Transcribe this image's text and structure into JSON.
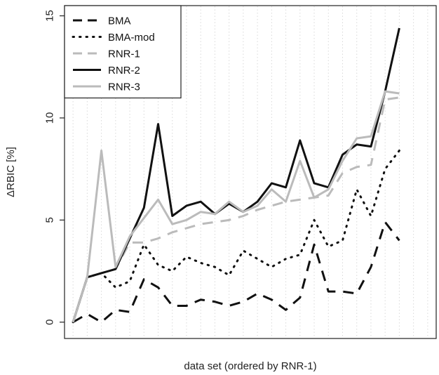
{
  "chart_data": {
    "type": "line",
    "xlabel": "data set (ordered by RNR-1)",
    "ylabel": "ΔRBIC [%]",
    "ylim": [
      -0.8,
      15.5
    ],
    "y_ticks": [
      0,
      5,
      10,
      15
    ],
    "x": [
      1,
      2,
      3,
      4,
      5,
      6,
      7,
      8,
      9,
      10,
      11,
      12,
      13,
      14,
      15,
      16,
      17,
      18,
      19,
      20,
      21,
      22,
      23,
      24,
      25,
      26
    ],
    "grid": "vertical dotted per data set",
    "legend_position": "top-left",
    "series": [
      {
        "name": "BMA",
        "color": "#111111",
        "dash": "long-dash",
        "width": 3,
        "values": [
          0.0,
          0.4,
          0.0,
          0.6,
          0.5,
          2.1,
          1.7,
          0.8,
          0.8,
          1.1,
          1.0,
          0.8,
          1.0,
          1.4,
          1.1,
          0.6,
          1.2,
          3.8,
          1.5,
          1.5,
          1.4,
          2.7,
          4.9,
          4.0,
          null,
          null
        ]
      },
      {
        "name": "BMA-mod",
        "color": "#111111",
        "dash": "dotted",
        "width": 3,
        "values": [
          0.0,
          2.2,
          2.4,
          1.7,
          2.0,
          3.8,
          2.8,
          2.5,
          3.2,
          2.9,
          2.7,
          2.3,
          3.5,
          3.1,
          2.7,
          3.1,
          3.3,
          5.0,
          3.7,
          4.0,
          6.5,
          5.2,
          7.5,
          8.4,
          null,
          null
        ]
      },
      {
        "name": "RNR-1",
        "color": "#bbbbbb",
        "dash": "long-dash",
        "width": 3,
        "values": [
          0.0,
          2.2,
          2.4,
          2.6,
          3.9,
          3.9,
          4.1,
          4.4,
          4.6,
          4.8,
          4.9,
          5.0,
          5.2,
          5.5,
          5.7,
          5.9,
          6.0,
          6.1,
          6.2,
          7.3,
          7.6,
          7.7,
          10.9,
          11.0,
          null,
          null
        ]
      },
      {
        "name": "RNR-2",
        "color": "#111111",
        "dash": "solid",
        "width": 3,
        "values": [
          0.0,
          2.2,
          2.4,
          2.6,
          4.1,
          5.6,
          9.7,
          5.2,
          5.7,
          5.9,
          5.3,
          5.8,
          5.4,
          5.9,
          6.8,
          6.6,
          8.9,
          6.8,
          6.6,
          8.2,
          8.7,
          8.6,
          11.3,
          14.4,
          null,
          null
        ]
      },
      {
        "name": "RNR-3",
        "color": "#bbbbbb",
        "dash": "solid",
        "width": 3,
        "values": [
          0.0,
          2.2,
          8.4,
          2.7,
          4.2,
          5.1,
          6.0,
          4.8,
          5.0,
          5.4,
          5.3,
          5.9,
          5.4,
          5.7,
          6.5,
          5.9,
          7.9,
          6.1,
          6.5,
          7.9,
          9.0,
          9.1,
          11.3,
          11.2,
          null,
          null
        ]
      }
    ]
  }
}
